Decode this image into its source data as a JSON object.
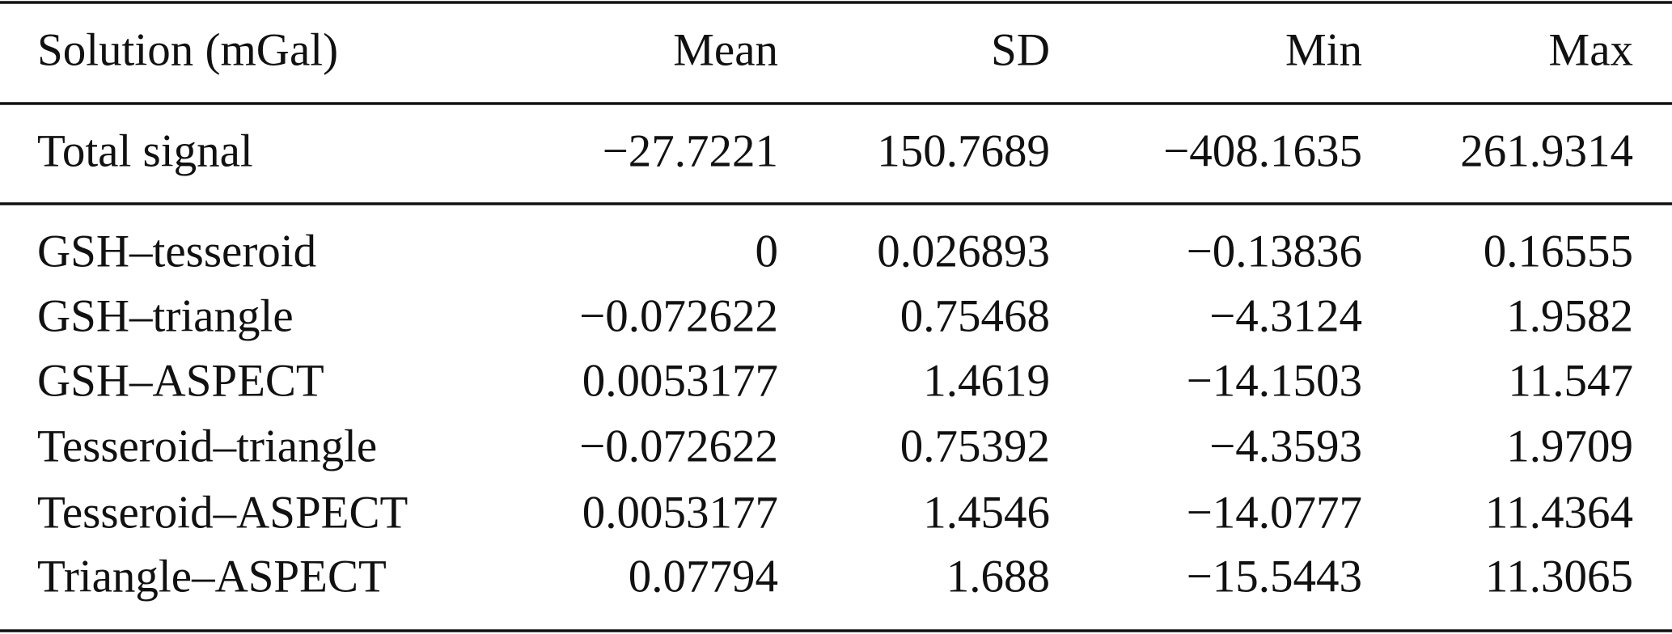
{
  "table": {
    "header": [
      "Solution (mGal)",
      "Mean",
      "SD",
      "Min",
      "Max"
    ],
    "rows": [
      [
        "Total signal",
        "−27.7221",
        "150.7689",
        "−408.1635",
        "261.9314"
      ],
      [
        "GSH–tesseroid",
        "0",
        "0.026893",
        "−0.13836",
        "0.16555"
      ],
      [
        "GSH–triangle",
        "−0.072622",
        "0.75468",
        "−4.3124",
        "1.9582"
      ],
      [
        "GSH–ASPECT",
        "0.0053177",
        "1.4619",
        "−14.1503",
        "11.547"
      ],
      [
        "Tesseroid–triangle",
        "−0.072622",
        "0.75392",
        "−4.3593",
        "1.9709"
      ],
      [
        "Tesseroid–ASPECT",
        "0.0053177",
        "1.4546",
        "−14.0777",
        "11.4364"
      ],
      [
        "Triangle–ASPECT",
        "0.07794",
        "1.688",
        "−15.5443",
        "11.3065"
      ]
    ]
  }
}
